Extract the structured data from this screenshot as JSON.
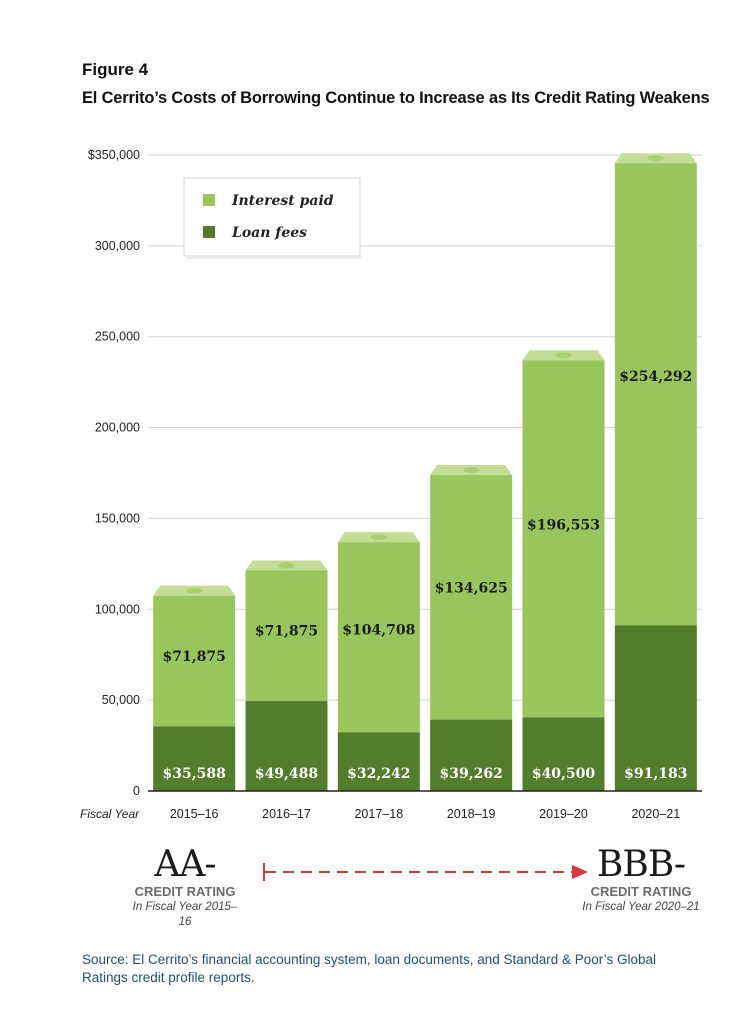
{
  "figure": {
    "label": "Figure 4",
    "title": "El Cerrito’s Costs of Borrowing Continue to Increase as Its Credit Rating Weakens"
  },
  "colors": {
    "interest": "#98c65c",
    "interest_top": "#c2dd94",
    "loan_fees": "#527d2a",
    "grid": "#cfcfcf",
    "axis": "#222222",
    "arrow": "#d9383a"
  },
  "chart_data": {
    "type": "bar",
    "stacked": true,
    "title": "El Cerrito’s Costs of Borrowing Continue to Increase as Its Credit Rating Weakens",
    "xlabel": "Fiscal Year",
    "ylabel": "",
    "ylim": [
      0,
      350000
    ],
    "y_ticks": [
      0,
      50000,
      100000,
      150000,
      200000,
      250000,
      300000,
      350000
    ],
    "y_tick_labels": [
      "0",
      "50,000",
      "100,000",
      "150,000",
      "200,000",
      "250,000",
      "300,000",
      "$350,000"
    ],
    "categories": [
      "2015–16",
      "2016–17",
      "2017–18",
      "2018–19",
      "2019–20",
      "2020–21"
    ],
    "series": [
      {
        "name": "Loan fees",
        "values": [
          35588,
          49488,
          32242,
          39262,
          40500,
          91183
        ],
        "labels": [
          "$35,588",
          "$49,488",
          "$32,242",
          "$39,262",
          "$40,500",
          "$91,183"
        ]
      },
      {
        "name": "Interest paid",
        "values": [
          71875,
          71875,
          104708,
          134625,
          196553,
          254292
        ],
        "labels": [
          "$71,875",
          "$71,875",
          "$104,708",
          "$134,625",
          "$196,553",
          "$254,292"
        ]
      }
    ],
    "legend": [
      "Interest paid",
      "Loan fees"
    ],
    "legend_position": "top-left",
    "grid": true
  },
  "ratings": {
    "left": {
      "grade": "AA-",
      "label": "CREDIT RATING",
      "year": "In Fiscal Year 2015–16"
    },
    "right": {
      "grade": "BBB-",
      "label": "CREDIT RATING",
      "year": "In Fiscal Year 2020–21"
    }
  },
  "source": "Source:  El Cerrito’s financial accounting system, loan documents, and Standard & Poor’s Global Ratings credit profile reports."
}
